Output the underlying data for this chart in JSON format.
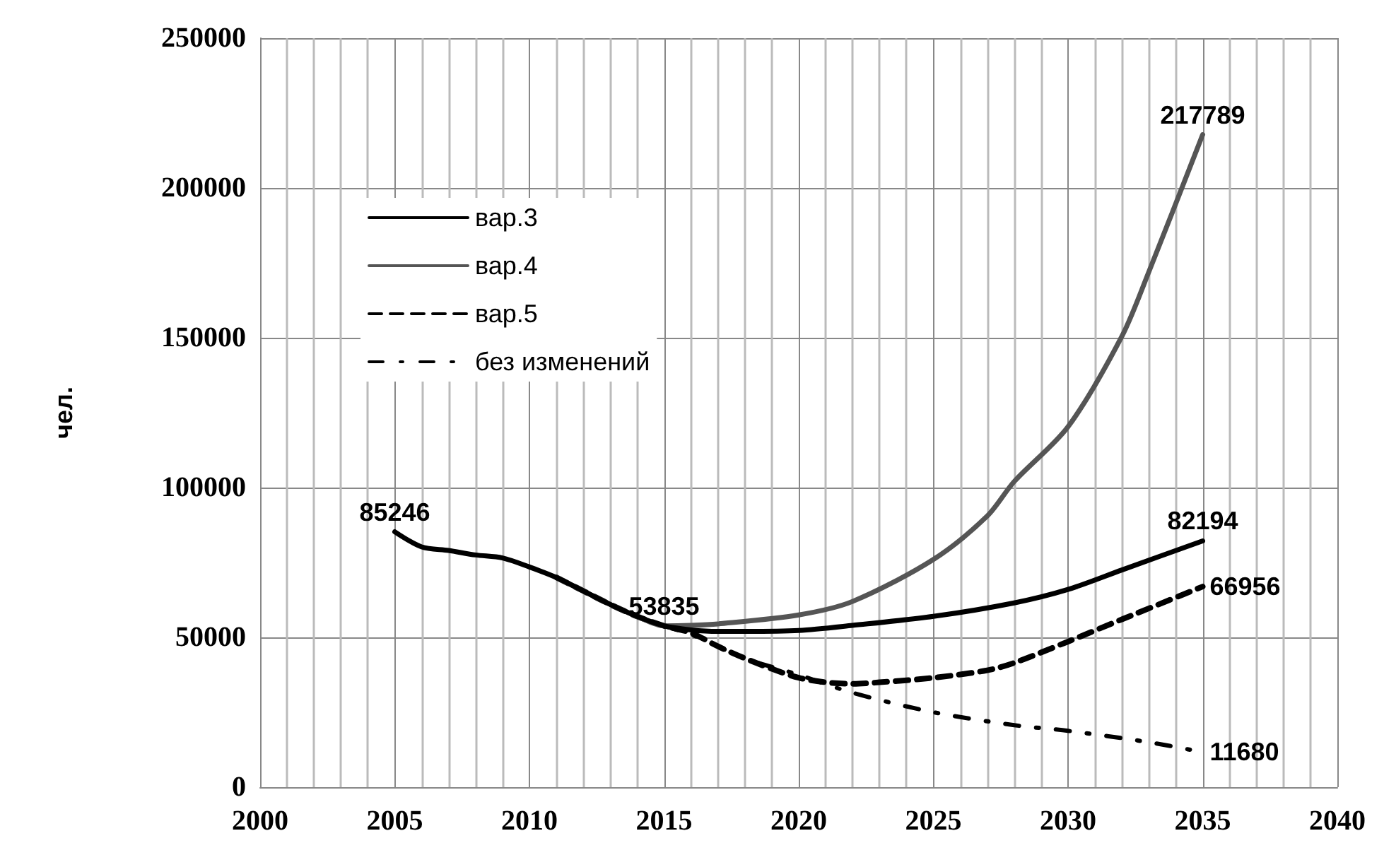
{
  "chart_data": {
    "type": "line",
    "ylabel": "чел.",
    "xlim": [
      2000,
      2040
    ],
    "xticks": [
      2000,
      2005,
      2010,
      2015,
      2020,
      2025,
      2030,
      2035,
      2040
    ],
    "ylim": [
      0,
      250000
    ],
    "yticks": [
      0,
      50000,
      100000,
      150000,
      200000,
      250000
    ],
    "grid": true,
    "legend": "top left",
    "marker": "none",
    "series": [
      {
        "name": "вар.3",
        "color": "#000000",
        "line_style": "solid",
        "x": [
          2005,
          2006,
          2007,
          2008,
          2009,
          2010,
          2011,
          2012,
          2013,
          2014,
          2015,
          2016,
          2017,
          2018,
          2020,
          2022,
          2025,
          2028,
          2030,
          2032,
          2035
        ],
        "values": [
          85246,
          80200,
          79000,
          77500,
          76500,
          73500,
          70000,
          65500,
          61000,
          57000,
          53835,
          52500,
          52000,
          52000,
          52300,
          54000,
          57000,
          61500,
          66000,
          72500,
          82194
        ],
        "value_labels": [
          "85246",
          null,
          null,
          null,
          null,
          null,
          null,
          null,
          null,
          null,
          "53835",
          null,
          null,
          null,
          null,
          null,
          null,
          null,
          null,
          null,
          "82194"
        ]
      },
      {
        "name": "вар.4",
        "color": "#555555",
        "line_style": "solid",
        "x": [
          2011,
          2012,
          2013,
          2014,
          2015,
          2016,
          2017,
          2020,
          2022,
          2025,
          2027,
          2028,
          2030,
          2032,
          2033,
          2035
        ],
        "values": [
          70000,
          65500,
          61000,
          57000,
          53835,
          54000,
          54500,
          57500,
          62000,
          76000,
          90500,
          102000,
          120300,
          150500,
          172000,
          217789
        ],
        "value_labels": [
          null,
          null,
          null,
          null,
          null,
          null,
          null,
          null,
          null,
          null,
          null,
          null,
          null,
          null,
          null,
          "217789"
        ]
      },
      {
        "name": "вар.5",
        "color": "#000000",
        "line_style": "dashed",
        "x": [
          2011,
          2012,
          2013,
          2014,
          2015,
          2016,
          2017,
          2018,
          2019,
          2020,
          2021,
          2022,
          2023,
          2025,
          2027,
          2028,
          2030,
          2032,
          2035
        ],
        "values": [
          70000,
          65500,
          61000,
          57000,
          53835,
          51500,
          47000,
          43000,
          39500,
          36500,
          35000,
          34500,
          35000,
          36500,
          39000,
          41500,
          48600,
          56000,
          66956
        ],
        "value_labels": [
          null,
          null,
          null,
          null,
          null,
          null,
          null,
          null,
          null,
          null,
          null,
          null,
          null,
          null,
          null,
          null,
          null,
          null,
          "66956"
        ]
      },
      {
        "name": "без изменений",
        "color": "#000000",
        "line_style": "dotted",
        "x": [
          2015,
          2016,
          2018,
          2020,
          2022,
          2025,
          2028,
          2030,
          2033,
          2035
        ],
        "values": [
          53835,
          51000,
          43000,
          37500,
          31500,
          25000,
          20700,
          18800,
          15000,
          11680
        ],
        "value_labels": [
          null,
          null,
          null,
          null,
          null,
          null,
          null,
          null,
          null,
          "11680"
        ]
      }
    ]
  }
}
